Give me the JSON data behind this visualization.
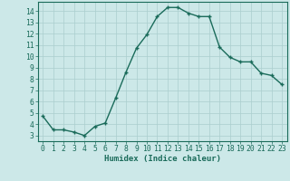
{
  "x": [
    0,
    1,
    2,
    3,
    4,
    5,
    6,
    7,
    8,
    9,
    10,
    11,
    12,
    13,
    14,
    15,
    16,
    17,
    18,
    19,
    20,
    21,
    22,
    23
  ],
  "y": [
    4.7,
    3.5,
    3.5,
    3.3,
    3.0,
    3.8,
    4.1,
    6.3,
    8.6,
    10.7,
    11.9,
    13.5,
    14.3,
    14.3,
    13.8,
    13.5,
    13.5,
    10.8,
    9.9,
    9.5,
    9.5,
    8.5,
    8.3,
    7.5
  ],
  "line_color": "#1a6b5a",
  "marker": "+",
  "markersize": 3.5,
  "linewidth": 1.0,
  "background_color": "#cce8e8",
  "grid_color": "#aacece",
  "xlabel": "Humidex (Indice chaleur)",
  "ylabel_ticks": [
    3,
    4,
    5,
    6,
    7,
    8,
    9,
    10,
    11,
    12,
    13,
    14
  ],
  "ylim": [
    2.5,
    14.8
  ],
  "xlim": [
    -0.5,
    23.5
  ],
  "xlabel_fontsize": 6.5,
  "tick_fontsize": 5.8,
  "tick_color": "#1a6b5a",
  "spine_color": "#1a6b5a"
}
